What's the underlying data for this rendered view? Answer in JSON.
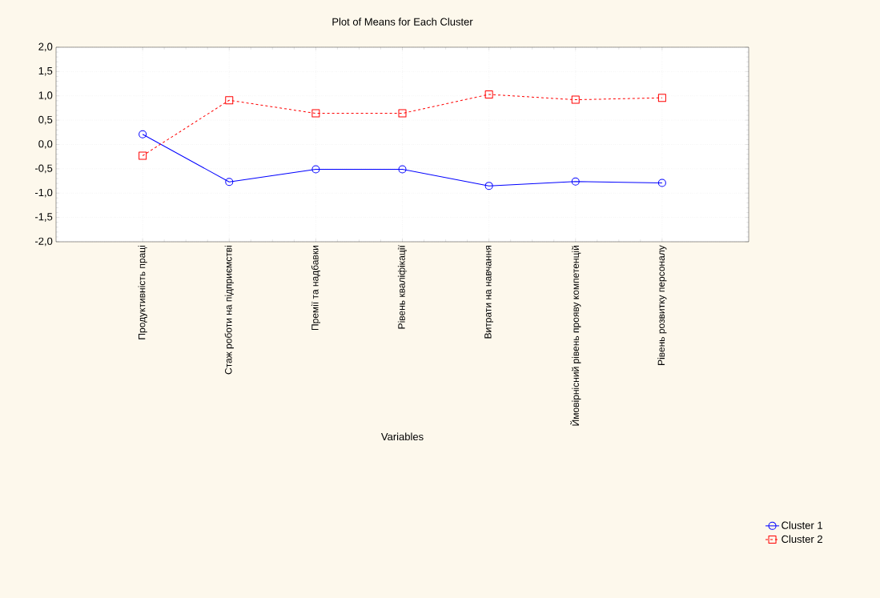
{
  "chart_data": {
    "type": "line",
    "title": "Plot of Means for Each Cluster",
    "xlabel": "Variables",
    "categories": [
      "Продуктивність праці",
      "Стаж роботи на підприємстві",
      "Премії та надбавки",
      "Рівень кваліфікації",
      "Витрати на навчання",
      "Ймовірнісний рівень прояву компетенцій",
      "Рівень розвитку персоналу"
    ],
    "series": [
      {
        "name": "Cluster 1",
        "color": "#0000ff",
        "marker": "circle",
        "line_style": "solid",
        "values": [
          0.21,
          -0.77,
          -0.51,
          -0.51,
          -0.85,
          -0.76,
          -0.79
        ]
      },
      {
        "name": "Cluster 2",
        "color": "#ff0000",
        "marker": "square",
        "line_style": "dashed",
        "values": [
          -0.23,
          0.91,
          0.64,
          0.64,
          1.03,
          0.92,
          0.96
        ]
      }
    ],
    "ylim": [
      -2,
      2
    ],
    "yticks": [
      {
        "value": -2,
        "label": "-2,0"
      },
      {
        "value": -1.5,
        "label": "-1,5"
      },
      {
        "value": -1,
        "label": "-1,0"
      },
      {
        "value": -0.5,
        "label": "-0,5"
      },
      {
        "value": 0,
        "label": "0,0"
      },
      {
        "value": 0.5,
        "label": "0,5"
      },
      {
        "value": 1,
        "label": "1,0"
      },
      {
        "value": 1.5,
        "label": "1,5"
      },
      {
        "value": 2,
        "label": "2,0"
      }
    ],
    "grid": true,
    "legend": "bottom right"
  }
}
